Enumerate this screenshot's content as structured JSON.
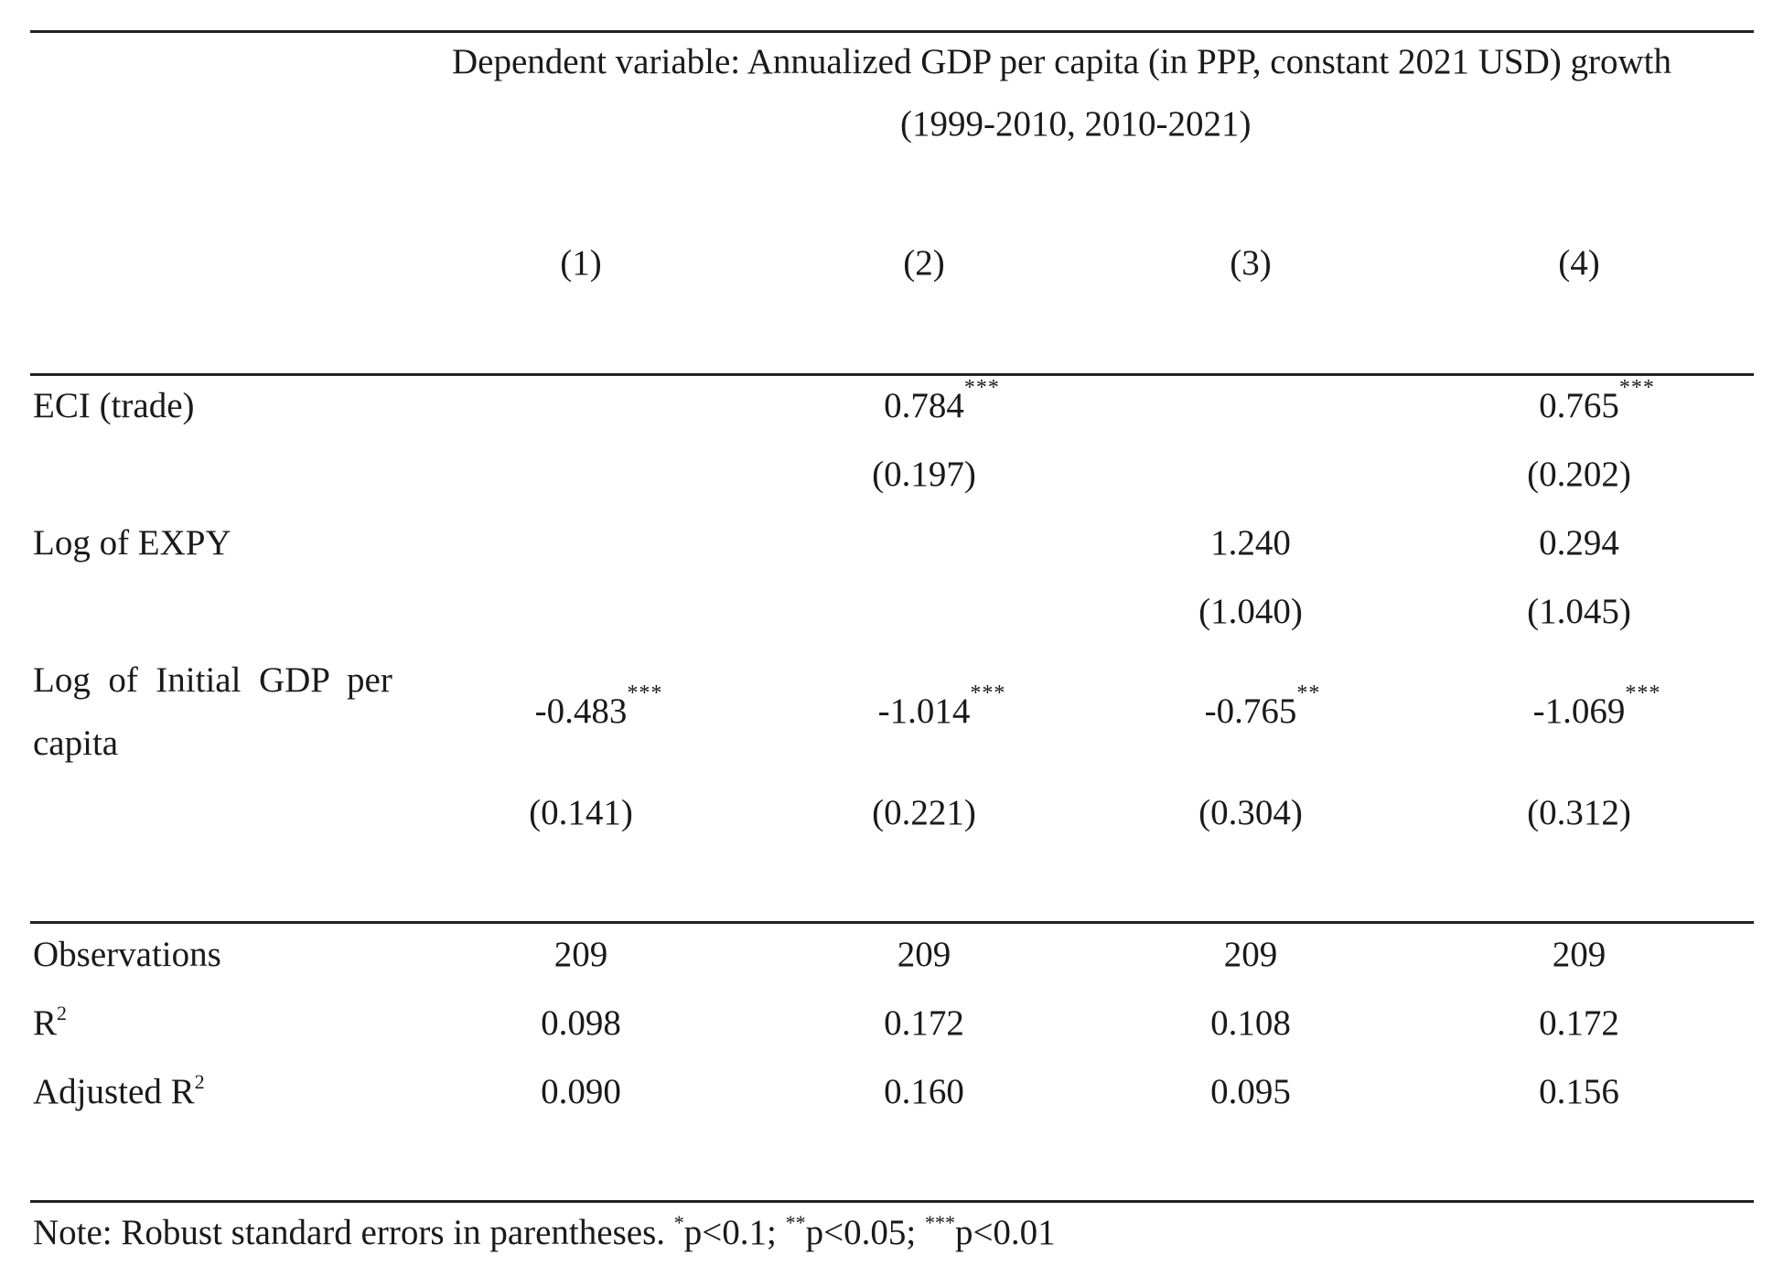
{
  "header": {
    "dependent_line1": "Dependent variable: Annualized GDP per capita (in PPP, constant 2021 USD) growth",
    "dependent_line2": "(1999-2010, 2010-2021)",
    "columns": [
      "(1)",
      "(2)",
      "(3)",
      "(4)"
    ]
  },
  "rows": {
    "eci": {
      "label": "ECI (trade)",
      "coef": [
        "",
        "0.784",
        "",
        "0.765"
      ],
      "stars": [
        "",
        "***",
        "",
        "***"
      ],
      "se": [
        "",
        "(0.197)",
        "",
        "(0.202)"
      ]
    },
    "expy": {
      "label": "Log of EXPY",
      "coef": [
        "",
        "",
        "1.240",
        "0.294"
      ],
      "stars": [
        "",
        "",
        "",
        ""
      ],
      "se": [
        "",
        "",
        "(1.040)",
        "(1.045)"
      ]
    },
    "gdp": {
      "label_line1": "Log  of  Initial  GDP  per",
      "label_line2": "capita",
      "coef": [
        "-0.483",
        "-1.014",
        "-0.765",
        "-1.069"
      ],
      "stars": [
        "***",
        "***",
        "**",
        "***"
      ],
      "se": [
        "(0.141)",
        "(0.221)",
        "(0.304)",
        "(0.312)"
      ]
    }
  },
  "stats": {
    "observations": {
      "label": "Observations",
      "values": [
        "209",
        "209",
        "209",
        "209"
      ]
    },
    "r2": {
      "label": "R",
      "sup": "2",
      "values": [
        "0.098",
        "0.172",
        "0.108",
        "0.172"
      ]
    },
    "adj_r2": {
      "label": "Adjusted R",
      "sup": "2",
      "values": [
        "0.090",
        "0.160",
        "0.095",
        "0.156"
      ]
    }
  },
  "note": {
    "prefix": "Note: Robust standard errors in parentheses. ",
    "s1": "*",
    "p1": "p<0.1; ",
    "s2": "**",
    "p2": "p<0.05; ",
    "s3": "***",
    "p3": "p<0.01"
  }
}
